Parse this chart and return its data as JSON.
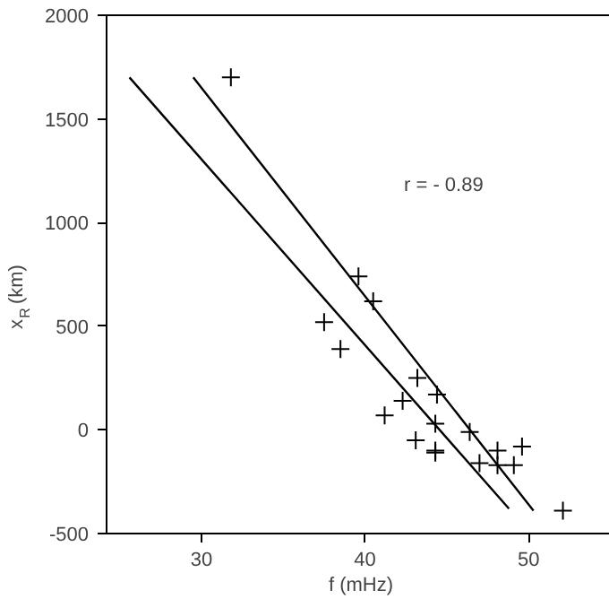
{
  "chart_data": {
    "type": "scatter",
    "xlabel": "f (mHz)",
    "ylabel": "x$_{R}$ (km)",
    "xlim": [
      24.2,
      55.3
    ],
    "ylim": [
      -500,
      2000
    ],
    "xticks": [
      30,
      40,
      50
    ],
    "yticks": [
      -500,
      0,
      500,
      1000,
      1500,
      2000
    ],
    "grid": false,
    "marker": "cross",
    "annotations": [
      "r = - 0.89"
    ],
    "series": [
      {
        "type": "scatter",
        "color": "#000000",
        "x": [
          31.8,
          39.6,
          40.5,
          37.5,
          38.5,
          43.2,
          44.4,
          42.3,
          41.2,
          44.3,
          46.4,
          43.1,
          44.3,
          44.3,
          48.1,
          49.6,
          47.0,
          48.1,
          49.1,
          52.1
        ],
        "values": [
          1700,
          740,
          620,
          520,
          390,
          250,
          170,
          140,
          70,
          30,
          -10,
          -50,
          -100,
          -110,
          -100,
          -80,
          -160,
          -170,
          -170,
          -390
        ]
      },
      {
        "type": "line",
        "color": "#000000",
        "marker": "none",
        "x": [
          25.6,
          48.8
        ],
        "values": [
          1700,
          -380
        ]
      },
      {
        "type": "line",
        "color": "#000000",
        "marker": "none",
        "x": [
          29.5,
          50.3
        ],
        "values": [
          1700,
          -390
        ]
      }
    ]
  }
}
